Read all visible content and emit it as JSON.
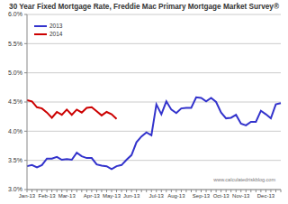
{
  "chart_data": {
    "type": "line",
    "title": "30 Year Fixed Mortgage Rate, Freddie Mac Primary Mortgage Market Survey®",
    "annotation": "www.calculatedriskblog.com",
    "categories": [
      "Jan-13",
      null,
      null,
      null,
      "Feb-13",
      null,
      null,
      null,
      "Mar-13",
      null,
      null,
      null,
      null,
      "Apr-13",
      null,
      null,
      null,
      "May-13",
      null,
      null,
      null,
      "Jun-13",
      null,
      null,
      null,
      null,
      "Jul-13",
      null,
      null,
      null,
      "Aug-13",
      null,
      null,
      null,
      null,
      "Sep-13",
      null,
      null,
      null,
      "Oct-13",
      null,
      null,
      null,
      "Nov-13",
      null,
      null,
      null,
      null,
      "Dec-13",
      null,
      null,
      null
    ],
    "series": [
      {
        "name": "2013",
        "color": "#3333cc",
        "values": [
          3.4,
          3.42,
          3.38,
          3.42,
          3.53,
          3.53,
          3.56,
          3.51,
          3.52,
          3.51,
          3.63,
          3.57,
          3.54,
          3.54,
          3.43,
          3.41,
          3.4,
          3.35,
          3.4,
          3.42,
          3.51,
          3.59,
          3.81,
          3.91,
          3.98,
          3.93,
          4.46,
          4.29,
          4.51,
          4.37,
          4.31,
          4.39,
          4.4,
          4.4,
          4.58,
          4.57,
          4.51,
          4.57,
          4.5,
          4.32,
          4.22,
          4.23,
          4.28,
          4.13,
          4.1,
          4.16,
          4.16,
          4.35,
          4.29,
          4.22,
          4.46,
          4.48
        ]
      },
      {
        "name": "2014",
        "color": "#cc0000",
        "values": [
          4.53,
          4.51,
          4.41,
          4.39,
          4.32,
          4.23,
          4.33,
          4.28,
          4.37,
          4.28,
          4.37,
          4.32,
          4.4,
          4.41,
          4.34,
          4.27,
          4.33,
          4.29,
          4.21,
          null,
          null,
          null,
          null,
          null,
          null,
          null,
          null,
          null,
          null,
          null,
          null,
          null,
          null,
          null,
          null,
          null,
          null,
          null,
          null,
          null,
          null,
          null,
          null,
          null,
          null,
          null,
          null,
          null,
          null,
          null,
          null,
          null
        ]
      }
    ],
    "ylim": [
      3,
      6
    ],
    "yticks": [
      {
        "value": 3,
        "label": "3.0%"
      },
      {
        "value": 3.5,
        "label": "3.5%"
      },
      {
        "value": 4,
        "label": "4.0%"
      },
      {
        "value": 4.5,
        "label": "4.5%"
      },
      {
        "value": 5,
        "label": "5.0%"
      },
      {
        "value": 5.5,
        "label": "5.5%"
      },
      {
        "value": 6,
        "label": "6.0%"
      }
    ],
    "grid": true,
    "legend": "upper left"
  }
}
